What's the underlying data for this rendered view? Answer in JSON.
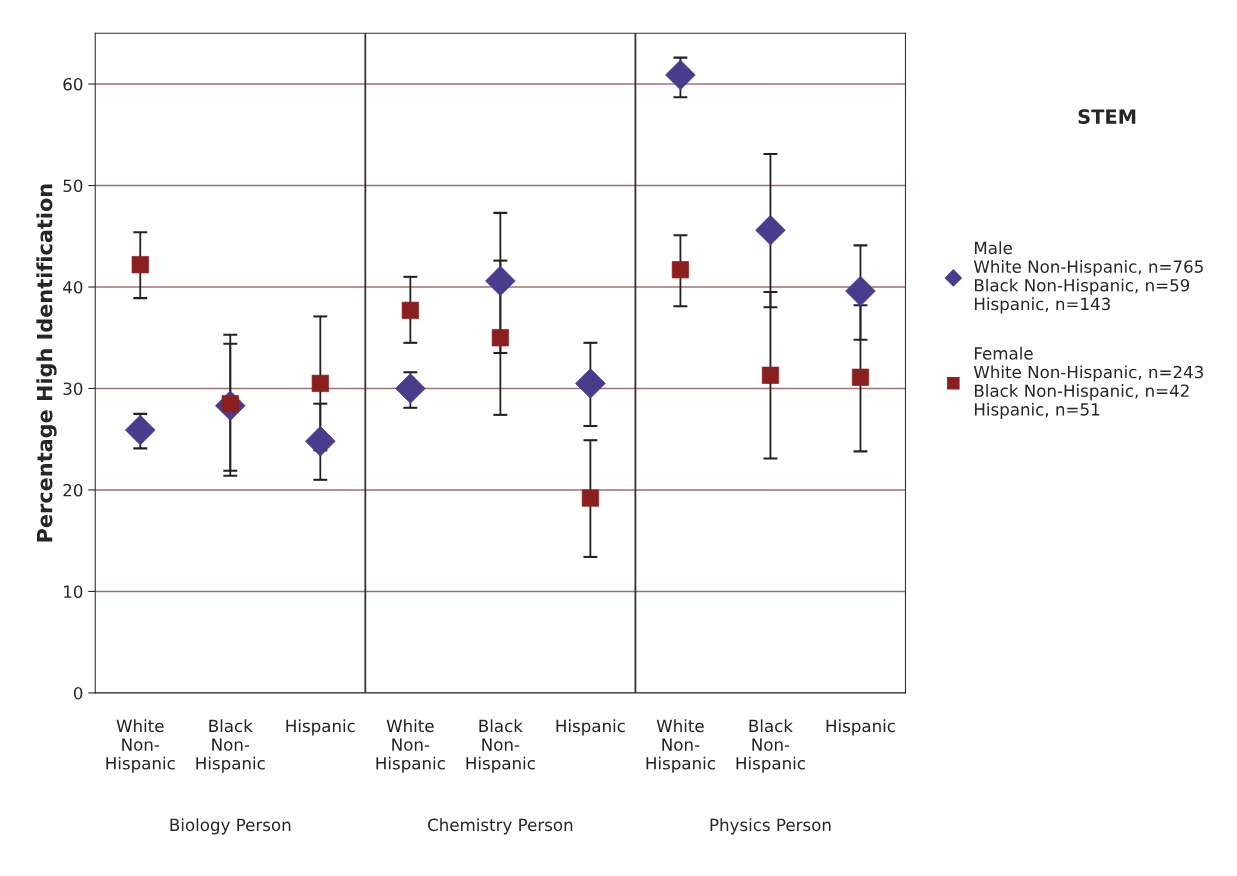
{
  "chart_data": {
    "type": "scatter",
    "title": "STEM",
    "ylabel": "Percentage High Identification",
    "categories": [
      "White Non-Hispanic",
      "Black Non-Hispanic",
      "Hispanic",
      "White Non-Hispanic",
      "Black Non-Hispanic",
      "Hispanic",
      "White Non-Hispanic",
      "Black Non-Hispanic",
      "Hispanic"
    ],
    "annotations": [
      "Biology Person",
      "Chemistry Person",
      "Physics Person"
    ],
    "series": [
      {
        "name": "Male\nWhite Non-Hispanic, n=765\nBlack Non-Hispanic, n=59\nHispanic, n=143",
        "color": "#4a3c8c",
        "marker": "diamond",
        "values": [
          25.9,
          28.3,
          24.8,
          30.0,
          40.6,
          30.5,
          60.9,
          45.6,
          39.6
        ],
        "errors": [
          [
            24.1,
            27.5
          ],
          [
            21.4,
            34.4
          ],
          [
            21.0,
            28.5
          ],
          [
            28.1,
            31.6
          ],
          [
            33.5,
            47.3
          ],
          [
            26.3,
            34.5
          ],
          [
            58.7,
            62.6
          ],
          [
            38.0,
            53.1
          ],
          [
            34.8,
            44.1
          ]
        ]
      },
      {
        "name": "Female\nWhite Non-Hispanic, n=243\nBlack Non-Hispanic, n=42\nHispanic, n=51",
        "color": "#8b1e1e",
        "marker": "square",
        "values": [
          42.2,
          28.5,
          30.5,
          37.7,
          35.0,
          19.2,
          41.7,
          31.3,
          31.1
        ],
        "errors": [
          [
            38.9,
            45.4
          ],
          [
            21.9,
            35.3
          ],
          [
            23.9,
            37.1
          ],
          [
            34.5,
            41.0
          ],
          [
            27.4,
            42.6
          ],
          [
            13.4,
            24.9
          ],
          [
            38.1,
            45.1
          ],
          [
            23.1,
            39.5
          ],
          [
            23.8,
            38.2
          ]
        ]
      }
    ],
    "ylim": [
      0,
      65
    ],
    "yticks": [
      0,
      10,
      20,
      30,
      40,
      50,
      60
    ],
    "grid": "y",
    "legend": "right"
  }
}
